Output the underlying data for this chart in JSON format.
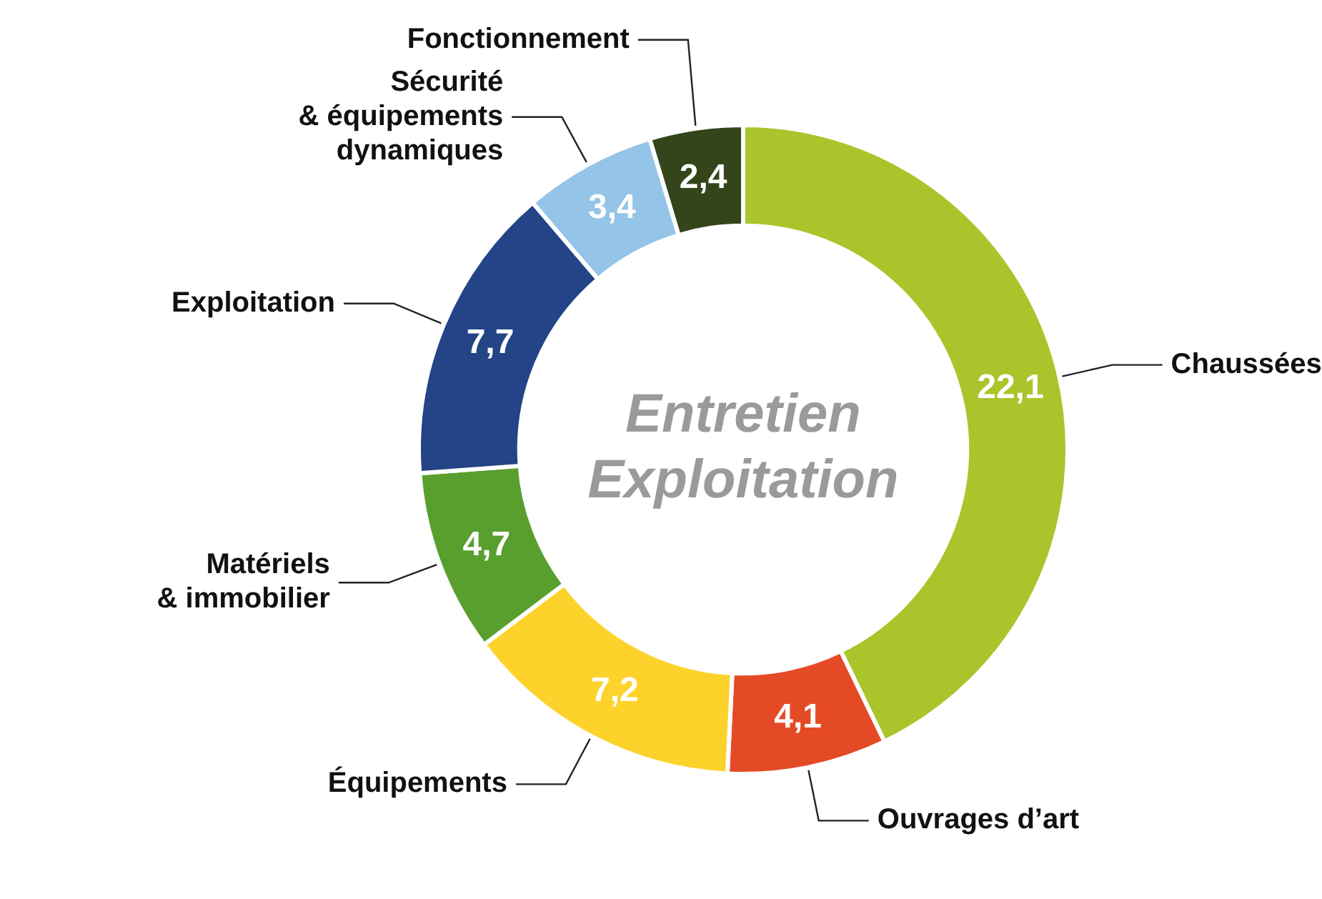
{
  "chart_data": {
    "type": "donut",
    "title": "Entretien Exploitation",
    "categories": [
      "Chaussées",
      "Ouvrages d’art",
      "Équipements",
      "Matériels\n& immobilier",
      "Exploitation",
      "Sécurité\n& équipements\ndynamiques",
      "Fonctionnement"
    ],
    "values": [
      22.1,
      4.1,
      7.2,
      4.7,
      7.7,
      3.4,
      2.4
    ],
    "value_labels": [
      "22,1",
      "4,1",
      "7,2",
      "4,7",
      "7,7",
      "3,4",
      "2,4"
    ],
    "colors": [
      "#a9c52b",
      "#e54a26",
      "#fdd22b",
      "#589f2e",
      "#244487",
      "#94c4e8",
      "#34451b"
    ],
    "legend": false
  }
}
